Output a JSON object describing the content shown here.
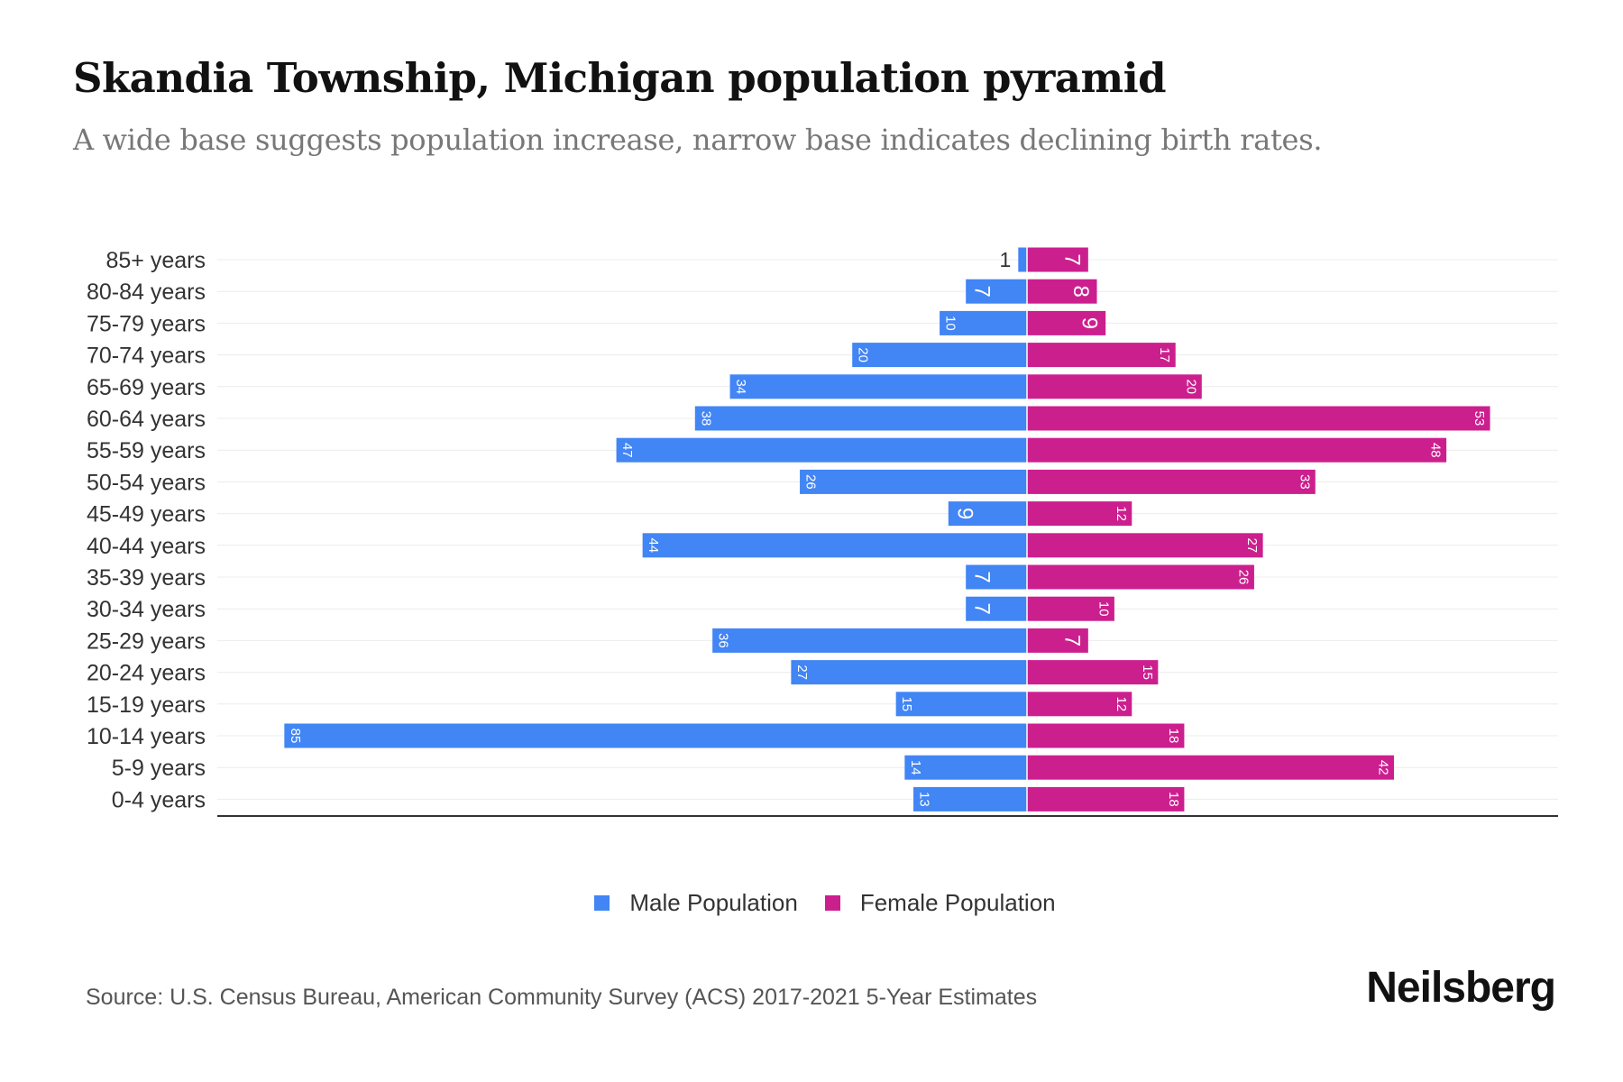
{
  "title": "Skandia Township, Michigan population pyramid",
  "subtitle": "A wide base suggests population increase, narrow base indicates declining birth rates.",
  "source": "Source: U.S. Census Bureau, American Community Survey (ACS) 2017-2021 5-Year Estimates",
  "logo": "Neilsberg",
  "chart_data": {
    "type": "bar",
    "orientation": "horizontal-pyramid",
    "categories": [
      "85+ years",
      "80-84 years",
      "75-79 years",
      "70-74 years",
      "65-69 years",
      "60-64 years",
      "55-59 years",
      "50-54 years",
      "45-49 years",
      "40-44 years",
      "35-39 years",
      "30-34 years",
      "25-29 years",
      "20-24 years",
      "15-19 years",
      "10-14 years",
      "5-9 years",
      "0-4 years"
    ],
    "series": [
      {
        "name": "Male Population",
        "color": "#4285f4",
        "values": [
          1,
          7,
          10,
          20,
          34,
          38,
          47,
          26,
          9,
          44,
          7,
          7,
          36,
          27,
          15,
          85,
          14,
          13
        ]
      },
      {
        "name": "Female Population",
        "color": "#cc1f8e",
        "values": [
          7,
          8,
          9,
          17,
          20,
          53,
          48,
          33,
          12,
          27,
          26,
          10,
          7,
          15,
          12,
          18,
          42,
          18
        ]
      }
    ],
    "grid": true,
    "legend_position": "bottom-center"
  }
}
